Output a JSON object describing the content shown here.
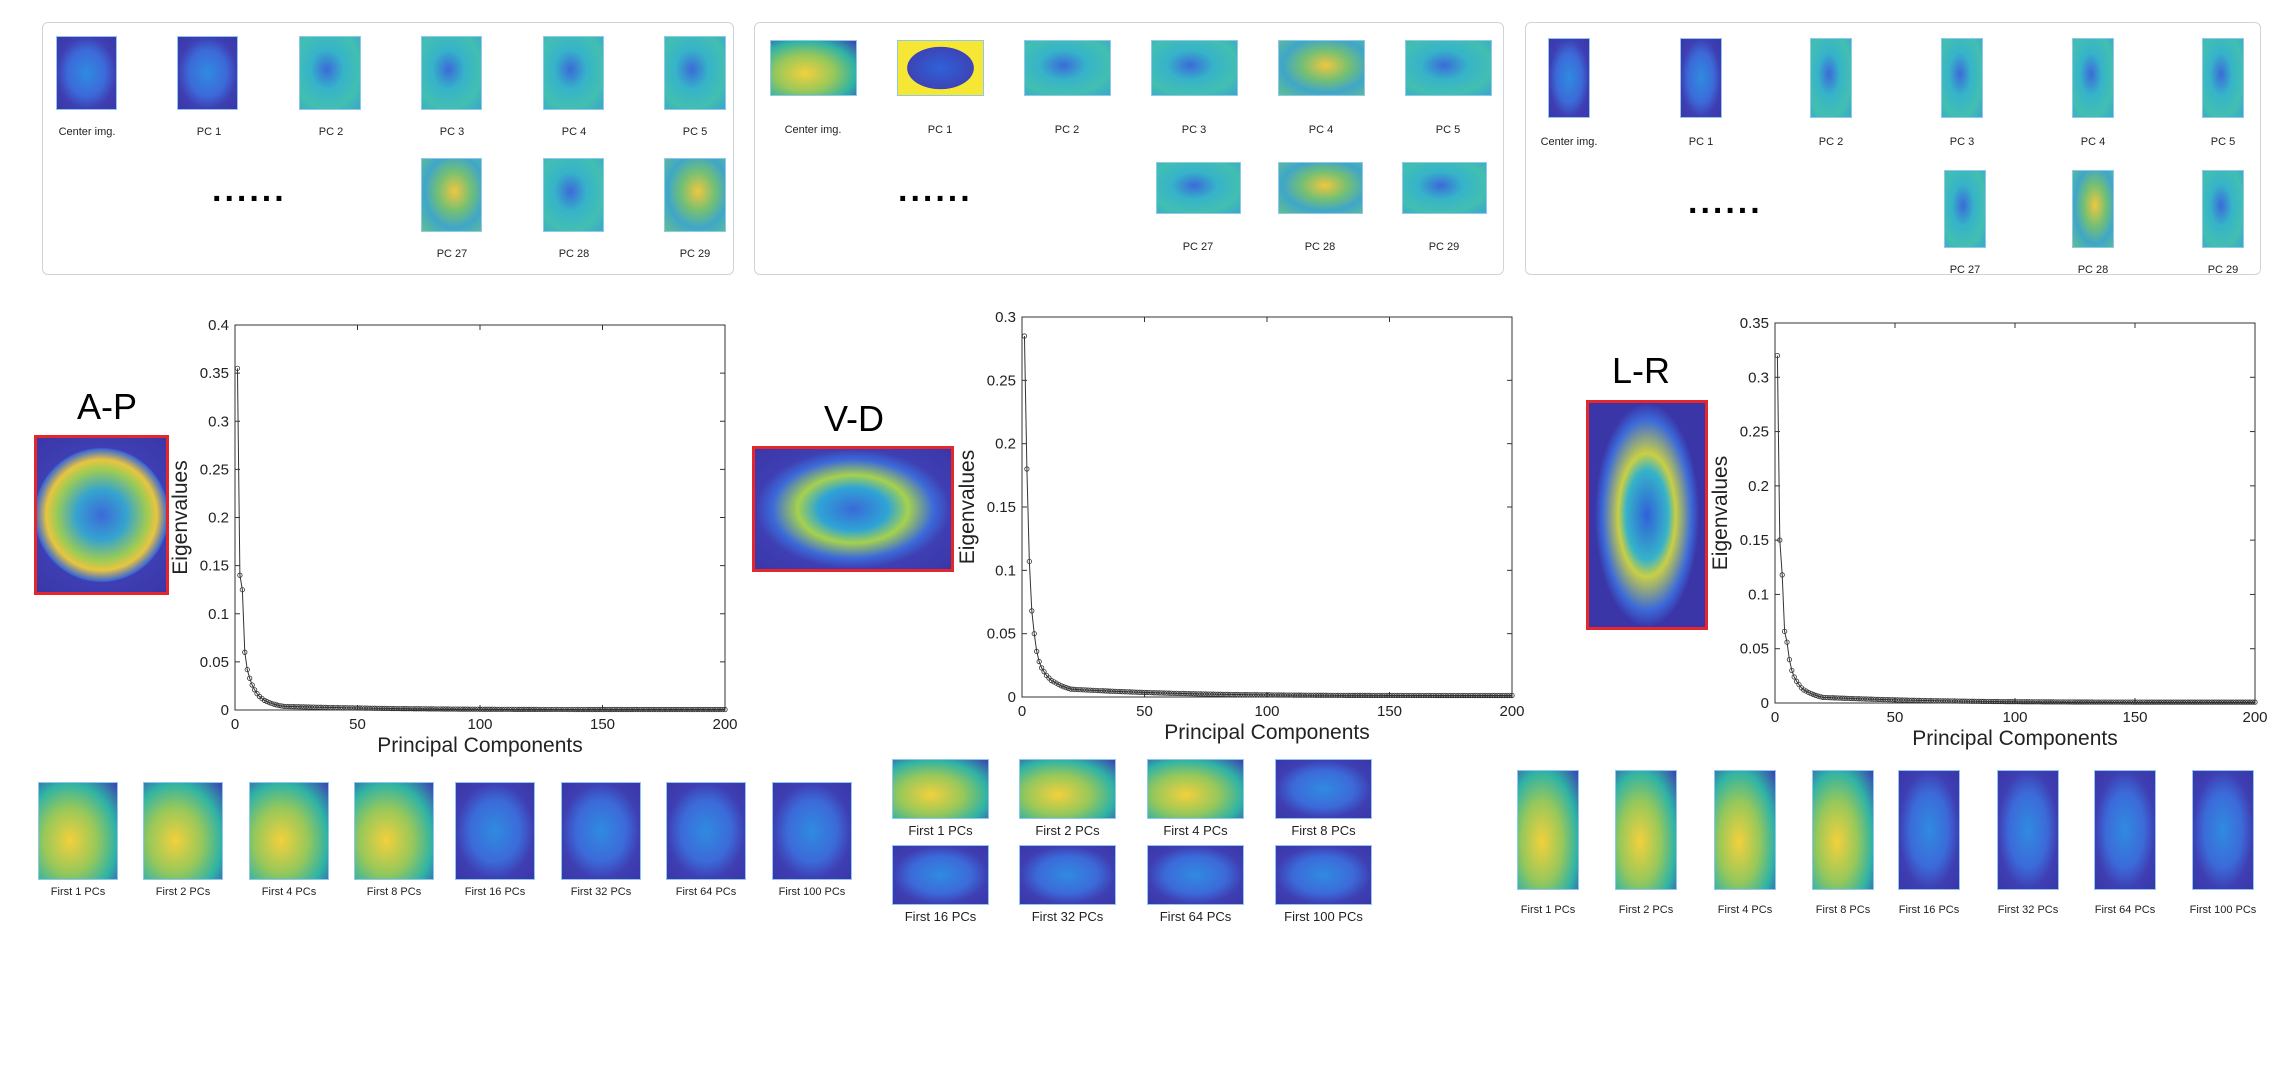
{
  "panels": [
    {
      "id": "ap",
      "orientation": "A-P",
      "top_labels": [
        "Center img.",
        "PC 1",
        "PC 2",
        "PC 3",
        "PC 4",
        "PC 5"
      ],
      "bottom_labels": [
        "PC 27",
        "PC 28",
        "PC 29"
      ],
      "ellipsis": "......",
      "recon_labels": [
        "First 1 PCs",
        "First 2 PCs",
        "First 4 PCs",
        "First 8 PCs",
        "First 16 PCs",
        "First 32 PCs",
        "First 64 PCs",
        "First 100 PCs"
      ]
    },
    {
      "id": "vd",
      "orientation": "V-D",
      "top_labels": [
        "Center img.",
        "PC 1",
        "PC 2",
        "PC 3",
        "PC 4",
        "PC 5"
      ],
      "bottom_labels": [
        "PC 27",
        "PC 28",
        "PC 29"
      ],
      "ellipsis": "......",
      "recon_labels": [
        "First 1 PCs",
        "First 2 PCs",
        "First 4 PCs",
        "First 8 PCs",
        "First 16 PCs",
        "First 32 PCs",
        "First 64 PCs",
        "First 100 PCs"
      ]
    },
    {
      "id": "lr",
      "orientation": "L-R",
      "top_labels": [
        "Center img.",
        "PC 1",
        "PC 2",
        "PC 3",
        "PC 4",
        "PC 5"
      ],
      "bottom_labels": [
        "PC 27",
        "PC 28",
        "PC 29"
      ],
      "ellipsis": "......",
      "recon_labels": [
        "First 1 PCs",
        "First 2 PCs",
        "First 4 PCs",
        "First 8 PCs",
        "First 16 PCs",
        "First 32 PCs",
        "First 64 PCs",
        "First 100 PCs"
      ]
    }
  ],
  "chart_data": [
    {
      "type": "line",
      "xlabel": "Principal Components",
      "ylabel": "Eigenvalues",
      "xlim": [
        0,
        200
      ],
      "ylim": [
        0,
        0.4
      ],
      "xticks": [
        "0",
        "50",
        "100",
        "150",
        "200"
      ],
      "yticks": [
        "0",
        "0.05",
        "0.1",
        "0.15",
        "0.2",
        "0.25",
        "0.3",
        "0.35",
        "0.4"
      ],
      "y_first": [
        0.355,
        0.14,
        0.125,
        0.06,
        0.042,
        0.033,
        0.026,
        0.021,
        0.017,
        0.014,
        0.012,
        0.01,
        0.0088,
        0.0077,
        0.0068,
        0.006,
        0.0053,
        0.0047,
        0.0042,
        0.0038
      ],
      "decay_to": 0.0005,
      "n_points": 200,
      "line_color": "#333333"
    },
    {
      "type": "line",
      "xlabel": "Principal Components",
      "ylabel": "Eigenvalues",
      "xlim": [
        0,
        200
      ],
      "ylim": [
        0,
        0.3
      ],
      "xticks": [
        "0",
        "50",
        "100",
        "150",
        "200"
      ],
      "yticks": [
        "0",
        "0.05",
        "0.1",
        "0.15",
        "0.2",
        "0.25",
        "0.3"
      ],
      "y_first": [
        0.285,
        0.18,
        0.107,
        0.068,
        0.05,
        0.036,
        0.028,
        0.023,
        0.02,
        0.017,
        0.015,
        0.013,
        0.012,
        0.011,
        0.0098,
        0.0089,
        0.0081,
        0.0074,
        0.0068,
        0.0062
      ],
      "decay_to": 0.0012,
      "n_points": 200,
      "line_color": "#333333"
    },
    {
      "type": "line",
      "xlabel": "Principal Components",
      "ylabel": "Eigenvalues",
      "xlim": [
        0,
        200
      ],
      "ylim": [
        0,
        0.35
      ],
      "xticks": [
        "0",
        "50",
        "100",
        "150",
        "200"
      ],
      "yticks": [
        "0",
        "0.05",
        "0.1",
        "0.15",
        "0.2",
        "0.25",
        "0.3",
        "0.35"
      ],
      "y_first": [
        0.32,
        0.15,
        0.118,
        0.066,
        0.056,
        0.04,
        0.03,
        0.024,
        0.02,
        0.017,
        0.014,
        0.012,
        0.011,
        0.0097,
        0.0087,
        0.0078,
        0.007,
        0.0063,
        0.0057,
        0.0052
      ],
      "decay_to": 0.0008,
      "n_points": 200,
      "line_color": "#333333"
    }
  ]
}
